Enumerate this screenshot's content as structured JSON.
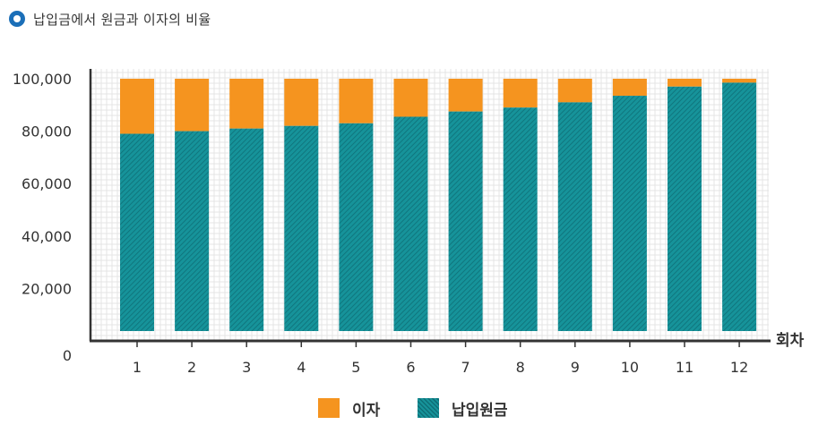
{
  "header": {
    "title": "납입금에서 원금과 이자의 비율",
    "bullet_icon": "circle-bullet-icon"
  },
  "colors": {
    "interest": "#F5941F",
    "principal": "#16939A",
    "principal_hatch": "#0E6F77",
    "bullet": "#1B6FB8",
    "grid": "#E4E4E4",
    "axis": "#333333"
  },
  "legend": [
    {
      "key": "interest",
      "label": "이자"
    },
    {
      "key": "principal",
      "label": "납입원금"
    }
  ],
  "chart_data": {
    "type": "bar",
    "stacked": true,
    "categories": [
      "1",
      "2",
      "3",
      "4",
      "5",
      "6",
      "7",
      "8",
      "9",
      "10",
      "11",
      "12"
    ],
    "series": [
      {
        "name": "납입원금",
        "values": [
          79000,
          80000,
          81000,
          82000,
          83000,
          85500,
          87500,
          89000,
          91000,
          93500,
          97000,
          98500
        ]
      },
      {
        "name": "이자",
        "values": [
          21000,
          20000,
          19000,
          18000,
          17000,
          14500,
          12500,
          11000,
          9000,
          6500,
          3000,
          1500
        ]
      }
    ],
    "ylim": [
      0,
      100000
    ],
    "yticks": [
      0,
      20000,
      40000,
      60000,
      80000,
      100000
    ],
    "ytick_labels": [
      "0",
      "20,000",
      "40,000",
      "60,000",
      "80,000",
      "100,000"
    ],
    "xlabel": "회차",
    "ylabel": "",
    "grid": true,
    "legend_position": "bottom"
  }
}
